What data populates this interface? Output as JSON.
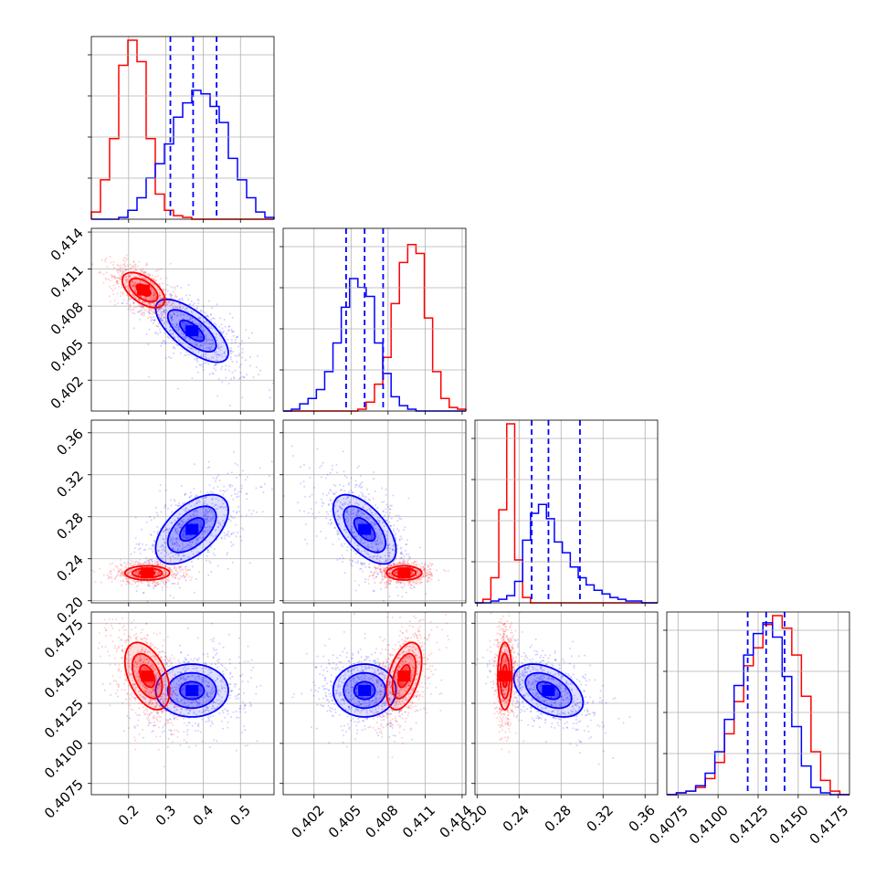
{
  "chart_data": {
    "type": "corner",
    "series": [
      {
        "name": "",
        "color": "#ff0000"
      },
      {
        "name": "",
        "color": "#0000ff"
      }
    ],
    "params": [
      {
        "range": [
          0.1,
          0.59
        ],
        "ticks": [
          0.2,
          0.3,
          0.4,
          0.5
        ],
        "tick_labels": [
          "0.2",
          "0.3",
          "0.4",
          "0.5"
        ],
        "hist": {
          "red": [
            0.04,
            0.22,
            0.45,
            0.86,
            1.0,
            0.88,
            0.45,
            0.14,
            0.05,
            0.02,
            0.01,
            0,
            0,
            0,
            0,
            0,
            0,
            0,
            0,
            0
          ],
          "blue": [
            0,
            0,
            0,
            0.01,
            0.05,
            0.12,
            0.23,
            0.31,
            0.42,
            0.57,
            0.65,
            0.72,
            0.7,
            0.63,
            0.54,
            0.34,
            0.22,
            0.12,
            0.04,
            0.01
          ]
        },
        "quantiles": [
          0.312,
          0.373,
          0.436
        ]
      },
      {
        "range": [
          0.3995,
          0.4143
        ],
        "ticks": [
          0.402,
          0.405,
          0.408,
          0.411,
          0.414
        ],
        "tick_labels": [
          "0.402",
          "0.405",
          "0.408",
          "0.411",
          "0.414"
        ],
        "hist": {
          "red": [
            0,
            0,
            0,
            0,
            0,
            0,
            0,
            0,
            0,
            0.01,
            0.05,
            0.15,
            0.3,
            0.6,
            0.83,
            0.93,
            0.88,
            0.52,
            0.22,
            0.07,
            0.02,
            0.01
          ],
          "blue": [
            0,
            0.01,
            0.04,
            0.07,
            0.12,
            0.22,
            0.38,
            0.58,
            0.74,
            0.69,
            0.64,
            0.38,
            0.21,
            0.08,
            0.03,
            0.01,
            0,
            0,
            0,
            0,
            0,
            0
          ]
        },
        "quantiles": [
          0.4046,
          0.4061,
          0.4076
        ]
      },
      {
        "range": [
          0.198,
          0.372
        ],
        "ticks": [
          0.2,
          0.24,
          0.28,
          0.32,
          0.36
        ],
        "tick_labels": [
          "0.20",
          "0.24",
          "0.28",
          "0.32",
          "0.36"
        ],
        "hist": {
          "red": [
            0,
            0.02,
            0.14,
            0.52,
            1.0,
            0.24,
            0.03,
            0,
            0,
            0,
            0,
            0,
            0,
            0,
            0,
            0,
            0,
            0,
            0,
            0,
            0,
            0,
            0
          ],
          "blue": [
            0,
            0,
            0.01,
            0.02,
            0.04,
            0.12,
            0.35,
            0.5,
            0.55,
            0.47,
            0.34,
            0.28,
            0.2,
            0.14,
            0.1,
            0.07,
            0.05,
            0.03,
            0.02,
            0.01,
            0.01,
            0,
            0
          ]
        },
        "quantiles": [
          0.252,
          0.268,
          0.298
        ]
      },
      {
        "range": [
          0.4068,
          0.4182
        ],
        "ticks": [
          0.4075,
          0.41,
          0.4125,
          0.415,
          0.4175
        ],
        "tick_labels": [
          "0.4075",
          "0.4100",
          "0.4125",
          "0.4150",
          "0.4175"
        ],
        "hist": {
          "red": [
            0,
            0.01,
            0.02,
            0.04,
            0.09,
            0.18,
            0.34,
            0.52,
            0.72,
            0.82,
            0.95,
            1.0,
            0.93,
            0.78,
            0.55,
            0.24,
            0.08,
            0.02,
            0
          ],
          "blue": [
            0,
            0.01,
            0.02,
            0.05,
            0.12,
            0.24,
            0.42,
            0.61,
            0.78,
            0.9,
            0.96,
            0.88,
            0.66,
            0.38,
            0.16,
            0.04,
            0.01,
            0,
            0
          ]
        },
        "quantiles": [
          0.41185,
          0.413,
          0.41415
        ]
      }
    ],
    "pairs": [
      {
        "row": 1,
        "col": 0,
        "red": {
          "cx": 0.24,
          "cy": 0.4093,
          "sx": 0.038,
          "sy": 0.00095,
          "rho": -0.55
        },
        "blue": {
          "cx": 0.37,
          "cy": 0.406,
          "sx": 0.065,
          "sy": 0.0017,
          "rho": -0.7
        }
      },
      {
        "row": 2,
        "col": 0,
        "red": {
          "cx": 0.25,
          "cy": 0.2265,
          "sx": 0.04,
          "sy": 0.0045,
          "rho": 0.0
        },
        "blue": {
          "cx": 0.37,
          "cy": 0.268,
          "sx": 0.065,
          "sy": 0.022,
          "rho": 0.55
        }
      },
      {
        "row": 2,
        "col": 1,
        "red": {
          "cx": 0.4093,
          "cy": 0.2265,
          "sx": 0.00095,
          "sy": 0.0045,
          "rho": 0.0
        },
        "blue": {
          "cx": 0.4061,
          "cy": 0.268,
          "sx": 0.0017,
          "sy": 0.022,
          "rho": -0.6
        }
      },
      {
        "row": 3,
        "col": 0,
        "red": {
          "cx": 0.25,
          "cy": 0.4142,
          "sx": 0.04,
          "sy": 0.0014,
          "rho": -0.45
        },
        "blue": {
          "cx": 0.37,
          "cy": 0.4133,
          "sx": 0.065,
          "sy": 0.0011,
          "rho": 0.0
        }
      },
      {
        "row": 3,
        "col": 1,
        "red": {
          "cx": 0.4093,
          "cy": 0.4142,
          "sx": 0.00095,
          "sy": 0.0014,
          "rho": 0.45
        },
        "blue": {
          "cx": 0.4061,
          "cy": 0.4133,
          "sx": 0.0017,
          "sy": 0.0011,
          "rho": 0.0
        }
      },
      {
        "row": 3,
        "col": 2,
        "red": {
          "cx": 0.2265,
          "cy": 0.4142,
          "sx": 0.0045,
          "sy": 0.0014,
          "rho": 0.0
        },
        "blue": {
          "cx": 0.268,
          "cy": 0.4133,
          "sx": 0.022,
          "sy": 0.0011,
          "rho": -0.45
        }
      }
    ],
    "contour_levels": [
      0.5,
      1.0,
      1.5
    ],
    "grid": true,
    "xlabel": "",
    "ylabel": "",
    "title": ""
  }
}
